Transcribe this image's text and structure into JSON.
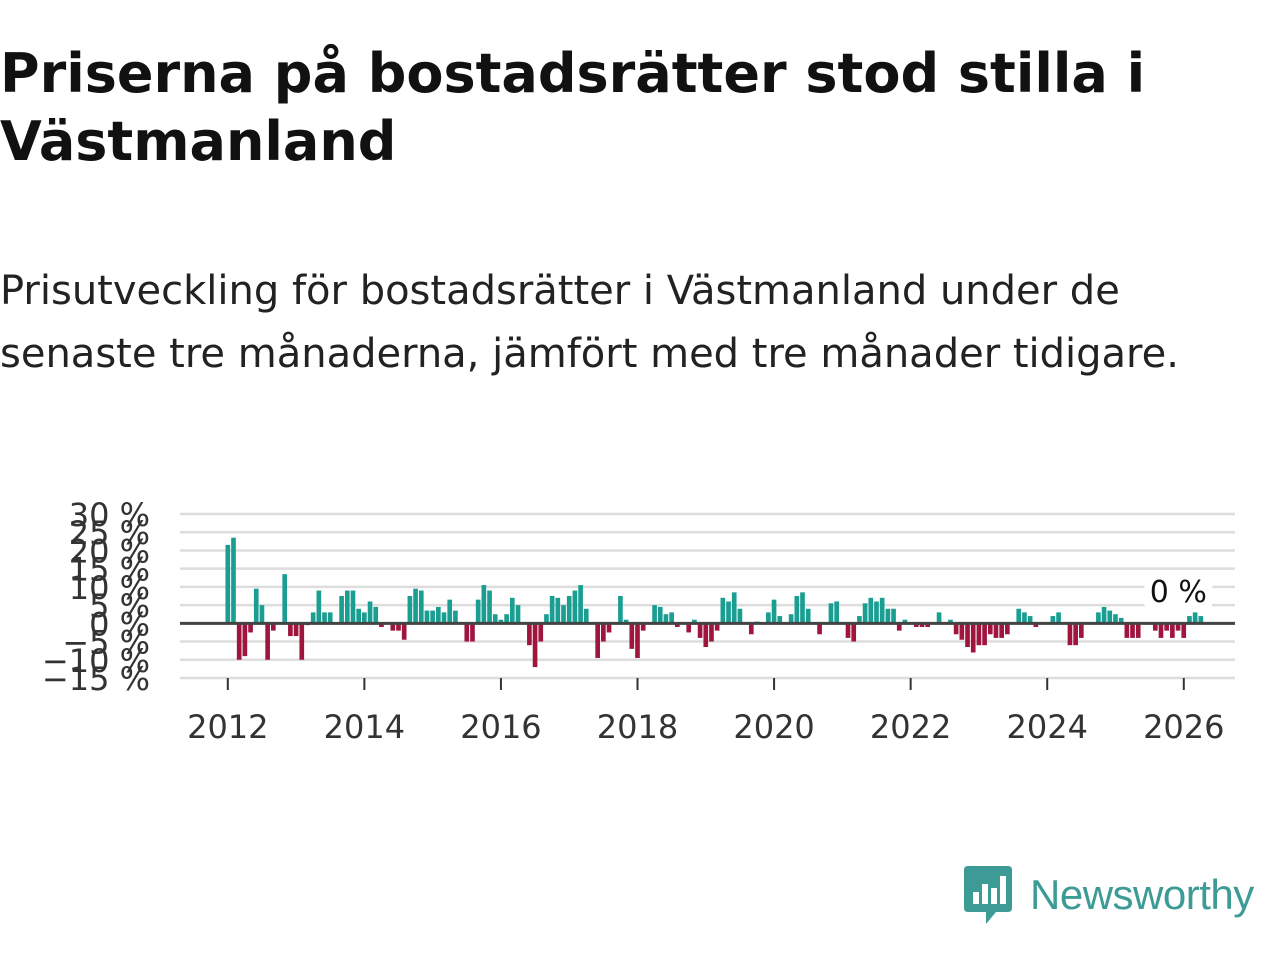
{
  "header": {
    "title": "Priserna på bostadsrätter stod stilla i Västmanland",
    "subtitle": "Prisutveckling för bostadsrätter i Västmanland under de senaste tre månaderna, jämfört med tre månader tidigare."
  },
  "chart_data": {
    "type": "bar",
    "title": "Priserna på bostadsrätter stod stilla i Västmanland",
    "xlabel": "",
    "ylabel": "",
    "xlim": [
      2011.3,
      2026.75
    ],
    "ylim": [
      -15,
      30
    ],
    "grid": true,
    "colors": {
      "positive": "#1a9e91",
      "negative": "#a0153e",
      "grid": "#dddddd",
      "zero_line": "#444444"
    },
    "y_ticks": [
      {
        "value": 30,
        "label": "30 %"
      },
      {
        "value": 25,
        "label": "25 %"
      },
      {
        "value": 20,
        "label": "20 %"
      },
      {
        "value": 15,
        "label": "15 %"
      },
      {
        "value": 10,
        "label": "10 %"
      },
      {
        "value": 5,
        "label": "5 %"
      },
      {
        "value": 0,
        "label": "0 %"
      },
      {
        "value": -5,
        "label": "−5 %"
      },
      {
        "value": -10,
        "label": "−10 %"
      },
      {
        "value": -15,
        "label": "−15 %"
      }
    ],
    "x_ticks": [
      {
        "value": 2012,
        "label": "2012"
      },
      {
        "value": 2014,
        "label": "2014"
      },
      {
        "value": 2016,
        "label": "2016"
      },
      {
        "value": 2018,
        "label": "2018"
      },
      {
        "value": 2020,
        "label": "2020"
      },
      {
        "value": 2022,
        "label": "2022"
      },
      {
        "value": 2024,
        "label": "2024"
      },
      {
        "value": 2026,
        "label": "2026"
      }
    ],
    "annotation": {
      "label": "0 %",
      "x": 2025.92,
      "y": 2
    },
    "x_start": 2012,
    "x_step": 0.08333,
    "values": [
      21.5,
      23.5,
      -10,
      -9,
      -2.5,
      9.5,
      5,
      -10,
      -2,
      0,
      13.5,
      -3.5,
      -3.5,
      -10,
      -0.5,
      3,
      9,
      3,
      3,
      0,
      7.5,
      9,
      9,
      4,
      3,
      6,
      4.5,
      -1,
      0,
      -2,
      -2,
      -4.5,
      7.5,
      9.5,
      9,
      3.5,
      3.5,
      4.5,
      3,
      6.5,
      3.5,
      0,
      -5,
      -5,
      6.5,
      10.5,
      9,
      2.5,
      1,
      2.5,
      7,
      5,
      0,
      -6,
      -12,
      -5,
      2.5,
      7.5,
      7,
      5,
      7.5,
      9,
      10.5,
      4,
      0,
      -9.5,
      -5,
      -2.5,
      0,
      7.5,
      1,
      -7,
      -9.5,
      -2,
      0,
      5,
      4.5,
      2.5,
      3,
      -1,
      0,
      -2.5,
      1,
      -4,
      -6.5,
      -5,
      -2,
      7,
      6,
      8.5,
      4,
      0,
      -3,
      0.5,
      0,
      3,
      6.5,
      2,
      0,
      2.5,
      7.5,
      8.5,
      4,
      0,
      -3,
      0,
      5.5,
      6,
      0,
      -4,
      -5,
      2,
      5.5,
      7,
      6,
      7,
      4,
      4,
      -2,
      1,
      0,
      -1,
      -1,
      -1,
      0,
      3,
      0,
      1,
      -3,
      -4.5,
      -6.5,
      -8,
      -6,
      -6,
      -3,
      -4,
      -4,
      -3,
      0,
      4,
      3,
      2,
      -1,
      0,
      0,
      2,
      3,
      0,
      -6,
      -6,
      -4,
      0,
      0,
      3,
      4.5,
      3.5,
      2.5,
      1.5,
      -4,
      -4,
      -4,
      0,
      0,
      -2,
      -4,
      -2,
      -4,
      -2,
      -4,
      2,
      3,
      2
    ]
  }
}
